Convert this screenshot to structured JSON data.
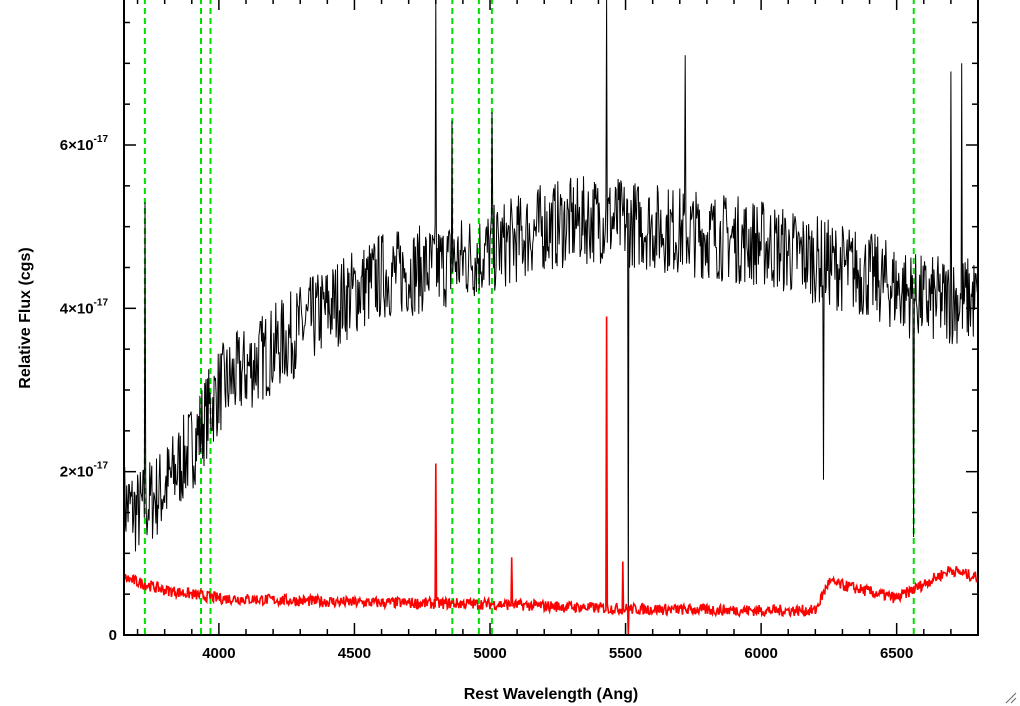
{
  "chart_data": {
    "type": "line",
    "xlabel": "Rest Wavelength (Ang)",
    "ylabel": "Relative Flux (cgs)",
    "xlim": [
      3650,
      6800
    ],
    "ylim": [
      0,
      7.8e-17
    ],
    "x_ticks": [
      {
        "value": 4000,
        "label": "4000"
      },
      {
        "value": 4500,
        "label": "4500"
      },
      {
        "value": 5000,
        "label": "5000"
      },
      {
        "value": 5500,
        "label": "5500"
      },
      {
        "value": 6000,
        "label": "6000"
      },
      {
        "value": 6500,
        "label": "6500"
      }
    ],
    "y_ticks": [
      {
        "value": 0,
        "mantissa": "0",
        "exponent": ""
      },
      {
        "value": 2e-17,
        "mantissa": "2×10",
        "exponent": "-17"
      },
      {
        "value": 4e-17,
        "mantissa": "4×10",
        "exponent": "-17"
      },
      {
        "value": 6e-17,
        "mantissa": "6×10",
        "exponent": "-17"
      }
    ],
    "reference_lines": [
      3727,
      3934,
      3969,
      4861,
      4959,
      5007,
      6563
    ],
    "series": [
      {
        "color": "#000000",
        "continuum": [
          [
            3650,
            1.6e-17
          ],
          [
            3700,
            1.5e-17
          ],
          [
            3800,
            1.8e-17
          ],
          [
            3900,
            2.3e-17
          ],
          [
            4000,
            3e-17
          ],
          [
            4200,
            3.5e-17
          ],
          [
            4400,
            4e-17
          ],
          [
            4600,
            4.4e-17
          ],
          [
            4800,
            4.5e-17
          ],
          [
            5000,
            4.7e-17
          ],
          [
            5200,
            5e-17
          ],
          [
            5400,
            5.1e-17
          ],
          [
            5600,
            5e-17
          ],
          [
            5800,
            4.9e-17
          ],
          [
            6000,
            4.8e-17
          ],
          [
            6200,
            4.6e-17
          ],
          [
            6400,
            4.4e-17
          ],
          [
            6600,
            4.1e-17
          ],
          [
            6800,
            4.1e-17
          ]
        ],
        "features": [
          [
            3727,
            5.3e-17
          ],
          [
            4800,
            7.8e-17
          ],
          [
            4861,
            6.3e-17
          ],
          [
            5007,
            6.4e-17
          ],
          [
            5430,
            7.8e-17
          ],
          [
            5510,
            0.0
          ],
          [
            5720,
            7.1e-17
          ],
          [
            6563,
            1.2e-17
          ],
          [
            6700,
            6.9e-17
          ],
          [
            6740,
            7e-17
          ],
          [
            6230,
            1.9e-17
          ]
        ]
      },
      {
        "color": "#ff0000",
        "continuum": [
          [
            3650,
            7e-18
          ],
          [
            3800,
            5.5e-18
          ],
          [
            4000,
            4.5e-18
          ],
          [
            4500,
            4e-18
          ],
          [
            5000,
            3.8e-18
          ],
          [
            5500,
            3.2e-18
          ],
          [
            6000,
            3e-18
          ],
          [
            6200,
            3e-18
          ],
          [
            6250,
            6.5e-18
          ],
          [
            6500,
            4.5e-18
          ],
          [
            6700,
            8e-18
          ],
          [
            6800,
            7e-18
          ]
        ],
        "features": [
          [
            4800,
            2.1e-17
          ],
          [
            5430,
            3.9e-17
          ],
          [
            5080,
            9.5e-18
          ],
          [
            5490,
            9e-18
          ],
          [
            5510,
            0.0
          ]
        ]
      }
    ]
  }
}
